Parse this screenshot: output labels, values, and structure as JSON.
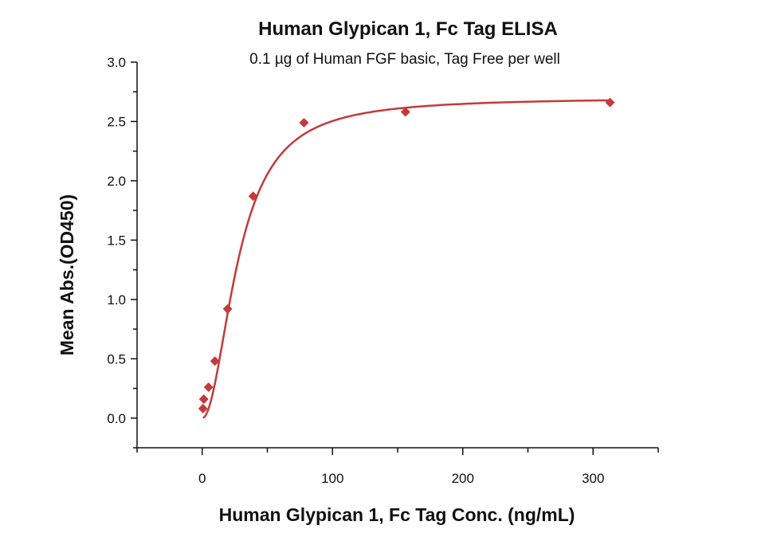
{
  "chart_data": {
    "type": "scatter",
    "title": "Human Glypican 1, Fc Tag ELISA",
    "subtitle": "0.1 µg of Human FGF basic, Tag Free per well",
    "xlabel": "Human Glypican 1, Fc Tag Conc. (ng/mL)",
    "ylabel": "Mean Abs.(OD450)",
    "xlim": [
      -50,
      350
    ],
    "ylim": [
      -0.25,
      3.0
    ],
    "x_ticks": [
      0,
      100,
      200,
      300
    ],
    "y_ticks": [
      0.0,
      0.5,
      1.0,
      1.5,
      2.0,
      2.5,
      3.0
    ],
    "x_tick_labels": [
      "0",
      "100",
      "200",
      "300"
    ],
    "y_tick_labels": [
      "0.0",
      "0.5",
      "1.0",
      "1.5",
      "2.0",
      "2.5",
      "3.0"
    ],
    "grid": false,
    "legend": "none",
    "series": [
      {
        "marker": "diamond",
        "color": "#c43a3a",
        "points": [
          {
            "x": 0.61,
            "y": 0.08
          },
          {
            "x": 1.22,
            "y": 0.16
          },
          {
            "x": 4.88,
            "y": 0.26
          },
          {
            "x": 9.77,
            "y": 0.48
          },
          {
            "x": 19.5,
            "y": 0.92
          },
          {
            "x": 39.1,
            "y": 1.87
          },
          {
            "x": 78.1,
            "y": 2.49
          },
          {
            "x": 156,
            "y": 2.58
          },
          {
            "x": 313,
            "y": 2.66
          }
        ],
        "fit_curve": {
          "type": "4PL",
          "bottom": 0.0,
          "top": 2.7,
          "ec50": 28,
          "hill": 2.0,
          "color": "#c43a3a"
        }
      }
    ]
  }
}
